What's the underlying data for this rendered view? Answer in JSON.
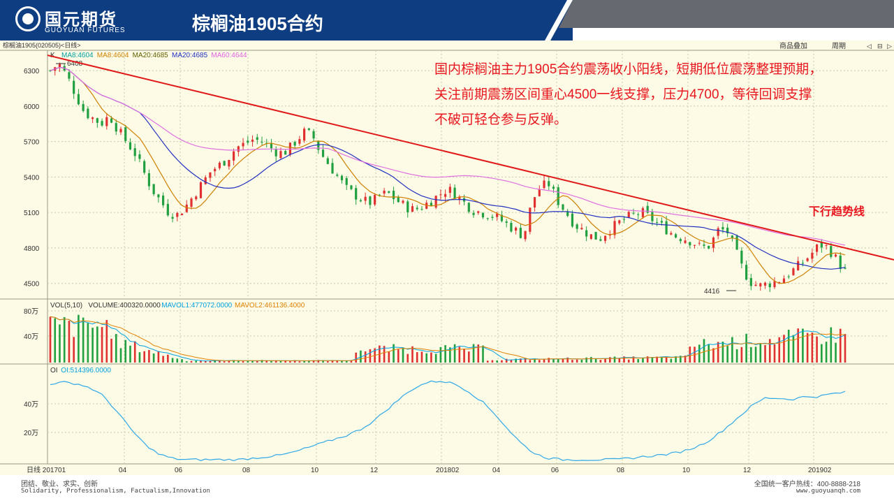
{
  "header": {
    "logo_cn": "国元期货",
    "logo_en": "GUOYUAN FUTURES",
    "title": "棕榈油1905合约"
  },
  "toolbar": {
    "instrument": "棕榈油1905(020505)<日线>",
    "buttons": [
      "商品叠加",
      "周期"
    ],
    "icons": [
      "◁",
      "⊟",
      "▷"
    ]
  },
  "annotation": {
    "lines": [
      "国内棕榈油主力1905合约震荡收小阳线，短期低位震荡整理预期，",
      "关注前期震荡区间重心4500一线支撑，压力4700，等待回调支撑",
      "不破可轻仓参与反弹。"
    ],
    "trend_label": "下行趋势线",
    "color": "#e8171f"
  },
  "footer": {
    "left_cn": "团结、敬业、求实、创新",
    "left_en": "Solidarity, Professionalism, Factualism,Innovation",
    "right_cn": "全国统一客户热线：400-8888-218",
    "right_url": "www.guoyuanqh.com"
  },
  "chart_data": {
    "type": "candlestick",
    "price_panel": {
      "label": "K",
      "legend": [
        {
          "text": "MA8:4604",
          "color": "#00a0a0"
        },
        {
          "text": "MA8:4604",
          "color": "#d08000"
        },
        {
          "text": "MA20:4685",
          "color": "#606000"
        },
        {
          "text": "MA20:4685",
          "color": "#2030c0"
        },
        {
          "text": "MA60:4644",
          "color": "#e060e0"
        }
      ],
      "y_ticks": [
        6300,
        6000,
        5700,
        5400,
        5100,
        4800,
        4500
      ],
      "ylim": [
        4380,
        6460
      ],
      "high_label": "6408",
      "low_label": "4416",
      "trend_line": {
        "from": {
          "t": 0,
          "price": 6430
        },
        "to": {
          "t": 1,
          "price": 4700
        }
      },
      "path": [
        6300,
        6360,
        6250,
        6100,
        5950,
        5900,
        5850,
        5920,
        5800,
        5700,
        5600,
        5450,
        5300,
        5200,
        5100,
        5080,
        5150,
        5250,
        5350,
        5450,
        5500,
        5560,
        5650,
        5680,
        5720,
        5700,
        5650,
        5600,
        5620,
        5700,
        5780,
        5750,
        5600,
        5500,
        5400,
        5300,
        5250,
        5200,
        5180,
        5250,
        5260,
        5200,
        5150,
        5120,
        5150,
        5200,
        5250,
        5300,
        5250,
        5180,
        5120,
        5100,
        5080,
        5050,
        5000,
        4950,
        4900,
        5200,
        5320,
        5340,
        5200,
        5100,
        5000,
        4950,
        4900,
        4880,
        4950,
        5000,
        5050,
        5080,
        5100,
        5050,
        5000,
        4950,
        4900,
        4880,
        4850,
        4800,
        4820,
        4950,
        4950,
        4780,
        4600,
        4500,
        4480,
        4500,
        4520,
        4560,
        4620,
        4680,
        4750,
        4830,
        4800,
        4700,
        4600
      ]
    },
    "volume_panel": {
      "legend": [
        {
          "text": "VOL(5,10)",
          "color": "#303030"
        },
        {
          "text": "VOLUME:400320.0000",
          "color": "#303030"
        },
        {
          "text": "MAVOL1:477072.0000",
          "color": "#00a0e0"
        },
        {
          "text": "MAVOL2:461136.4000",
          "color": "#e08000"
        }
      ],
      "y_ticks": [
        "80万",
        "40万"
      ]
    },
    "oi_panel": {
      "legend": [
        {
          "text": "OI",
          "color": "#303030"
        },
        {
          "text": "OI:514396.0000",
          "color": "#00a0e0"
        }
      ],
      "y_ticks": [
        "40万",
        "20万"
      ],
      "path": [
        54,
        55,
        54,
        51,
        45,
        34,
        22,
        12,
        5,
        2,
        1,
        1,
        1,
        1,
        1,
        2,
        3,
        4,
        6,
        9,
        12,
        15,
        18,
        22,
        28,
        36,
        44,
        51,
        55,
        56,
        54,
        49,
        42,
        33,
        22,
        12,
        5,
        2,
        1,
        1,
        1,
        1,
        1,
        2,
        3,
        4,
        5,
        7,
        10,
        15,
        22,
        30,
        38,
        44,
        44,
        43,
        45,
        45,
        47,
        48
      ]
    },
    "x_ticks": [
      "日线 201701",
      "04",
      "06",
      "08",
      "10",
      "12",
      "201802",
      "04",
      "06",
      "08",
      "10",
      "12",
      "201902"
    ]
  }
}
